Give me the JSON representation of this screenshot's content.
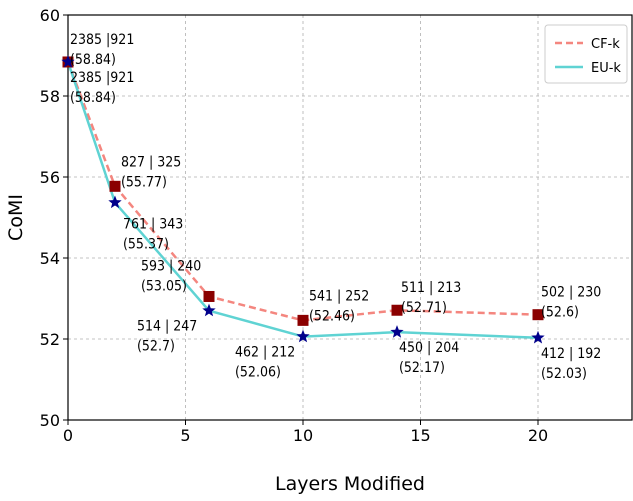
{
  "chart_data": {
    "type": "line",
    "xlabel": "Layers Modified",
    "ylabel": "CoMI",
    "xlim": [
      0,
      24
    ],
    "ylim": [
      50,
      60
    ],
    "xticks": [
      0,
      5,
      10,
      15,
      20
    ],
    "yticks": [
      50,
      52,
      54,
      56,
      58,
      60
    ],
    "grid": true,
    "legend_position": "top-right",
    "series": [
      {
        "name": "CF-k",
        "color": "#f4867f",
        "marker_color": "#8b0000",
        "linestyle": "dashed",
        "marker": "square",
        "x": [
          0,
          2,
          6,
          10,
          14,
          20
        ],
        "y": [
          58.84,
          55.77,
          53.05,
          52.46,
          52.71,
          52.6
        ],
        "labels": [
          [
            "2385 |921",
            "(58.84)"
          ],
          [
            "827 | 325",
            "(55.77)"
          ],
          [
            "593 | 240",
            "(53.05)"
          ],
          [
            "541 | 252",
            "(52.46)"
          ],
          [
            "511 | 213",
            "(52.71)"
          ],
          [
            "502 | 230",
            "(52.6)"
          ]
        ]
      },
      {
        "name": "EU-k",
        "color": "#5fd3d3",
        "marker_color": "#00008b",
        "linestyle": "solid",
        "marker": "star",
        "x": [
          0,
          2,
          6,
          10,
          14,
          20
        ],
        "y": [
          58.84,
          55.37,
          52.7,
          52.06,
          52.17,
          52.03
        ],
        "labels": [
          [
            "2385 |921",
            "(58.84)"
          ],
          [
            "761 | 343",
            "(55.37)"
          ],
          [
            "514 | 247",
            "(52.7)"
          ],
          [
            "462 | 212",
            "(52.06)"
          ],
          [
            "450 | 204",
            "(52.17)"
          ],
          [
            "412 | 192",
            "(52.03)"
          ]
        ]
      }
    ]
  }
}
